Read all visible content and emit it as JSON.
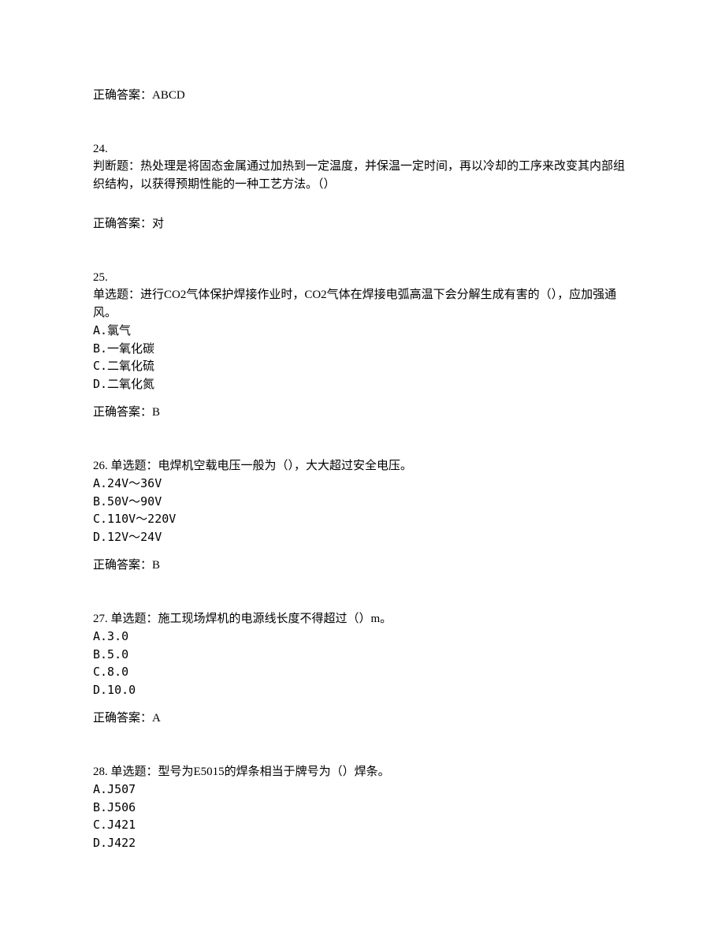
{
  "q23": {
    "answer_label": "正确答案：ABCD"
  },
  "q24": {
    "number": "24.",
    "text": "判断题：热处理是将固态金属通过加热到一定温度，并保温一定时间，再以冷却的工序来改变其内部组织结构，以获得预期性能的一种工艺方法。（）",
    "answer_label": "正确答案：对"
  },
  "q25": {
    "number": "25.",
    "text": "单选题：进行CO2气体保护焊接作业时，CO2气体在焊接电弧高温下会分解生成有害的（），应加强通风。",
    "option_a": "A.氯气",
    "option_b": "B.一氧化碳",
    "option_c": "C.二氧化硫",
    "option_d": "D.二氧化氮",
    "answer_label": "正确答案：B"
  },
  "q26": {
    "number_text": "26. 单选题：电焊机空载电压一般为（），大大超过安全电压。",
    "option_a": "A.24V～36V",
    "option_b": "B.50V～90V",
    "option_c": "C.110V～220V",
    "option_d": "D.12V～24V",
    "answer_label": "正确答案：B"
  },
  "q27": {
    "number_text": "27. 单选题：施工现场焊机的电源线长度不得超过（）m。",
    "option_a": "A.3.0",
    "option_b": "B.5.0",
    "option_c": "C.8.0",
    "option_d": "D.10.0",
    "answer_label": "正确答案：A"
  },
  "q28": {
    "number_text": "28. 单选题：型号为E5015的焊条相当于牌号为（）焊条。",
    "option_a": "A.J507",
    "option_b": "B.J506",
    "option_c": "C.J421",
    "option_d": "D.J422"
  }
}
